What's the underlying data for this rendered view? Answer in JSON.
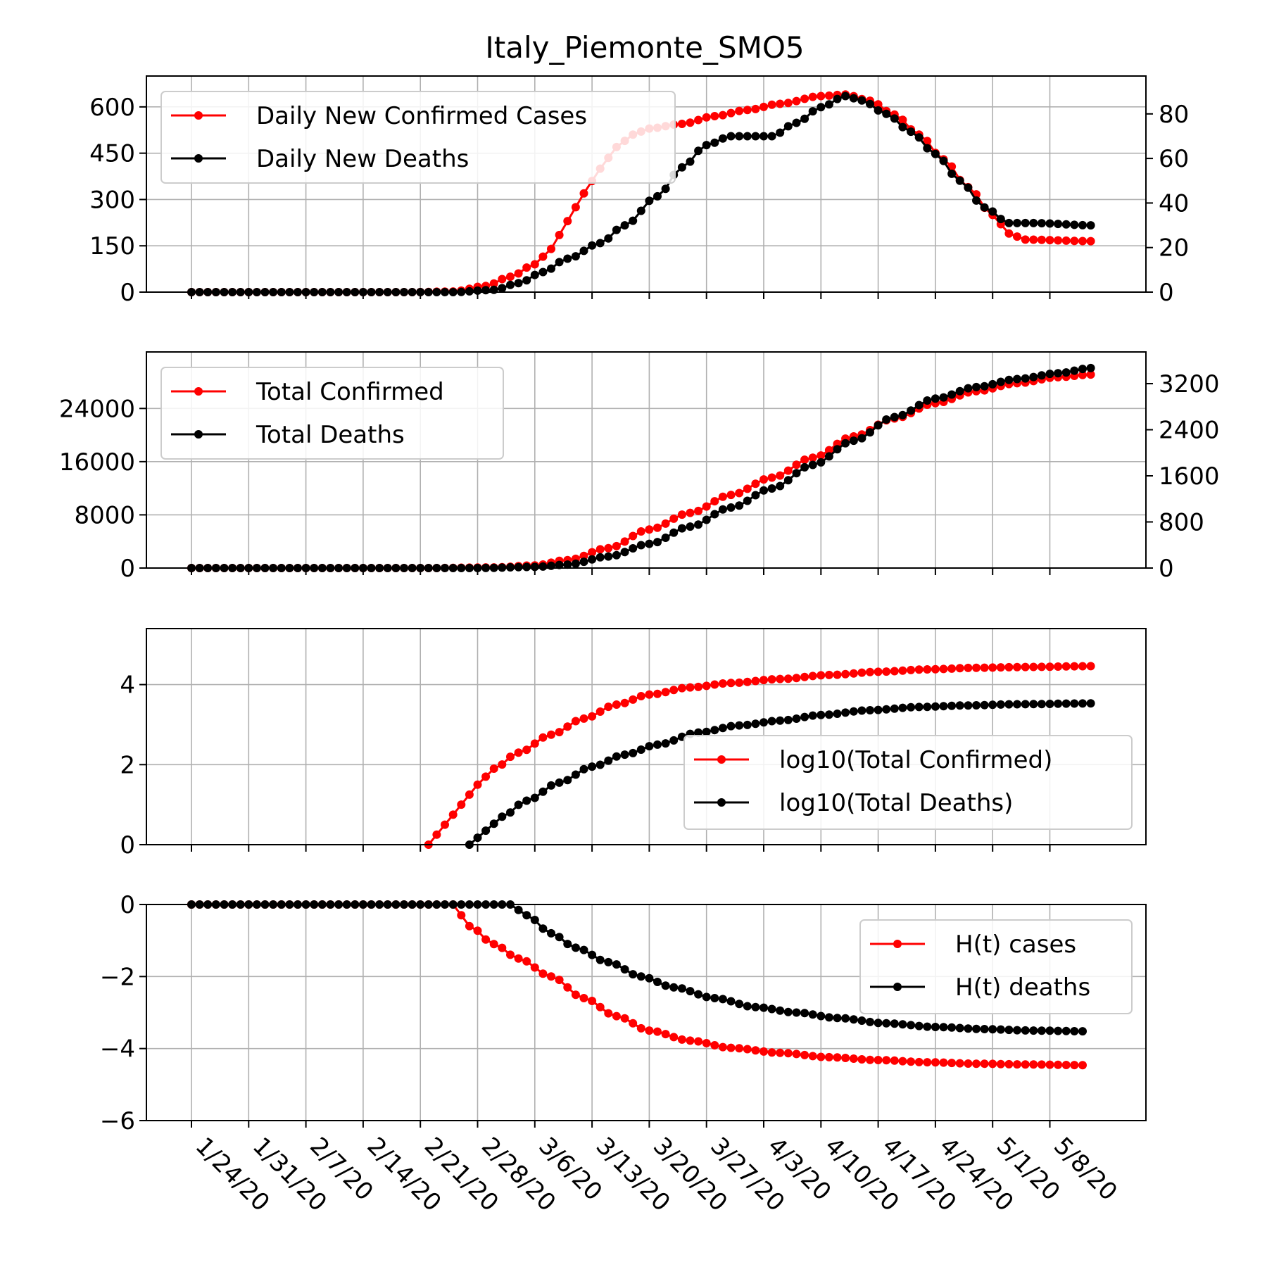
{
  "title": "Italy_Piemonte_SMO5",
  "colors": {
    "cases": "#ff0000",
    "deaths": "#000000",
    "grid": "#b0b0b0"
  },
  "x_tick_labels": [
    "1/24/20",
    "1/31/20",
    "2/7/20",
    "2/14/20",
    "2/21/20",
    "2/28/20",
    "3/6/20",
    "3/13/20",
    "3/20/20",
    "3/27/20",
    "4/3/20",
    "4/10/20",
    "4/17/20",
    "4/24/20",
    "5/1/20",
    "5/8/20"
  ],
  "chart_data": [
    {
      "type": "line",
      "x_type": "date",
      "x": {
        "start": "1/24/20",
        "end": "5/13/20"
      },
      "left_ylim": [
        0,
        700
      ],
      "left_ticks": [
        "0",
        "150",
        "300",
        "450",
        "600"
      ],
      "right_ylim": [
        0,
        97
      ],
      "right_ticks": [
        "0",
        "20",
        "40",
        "60",
        "80"
      ],
      "grid": true,
      "legend_position": "top-left",
      "series": [
        {
          "name": "Daily New Confirmed Cases",
          "axis": "left",
          "color": "#ff0000",
          "points": [
            [
              "1/24/20",
              0
            ],
            [
              "2/20/20",
              0
            ],
            [
              "2/25/20",
              2
            ],
            [
              "2/29/20",
              20
            ],
            [
              "3/3/20",
              50
            ],
            [
              "3/6/20",
              90
            ],
            [
              "3/8/20",
              140
            ],
            [
              "3/10/20",
              230
            ],
            [
              "3/12/20",
              320
            ],
            [
              "3/14/20",
              400
            ],
            [
              "3/16/20",
              470
            ],
            [
              "3/18/20",
              510
            ],
            [
              "3/20/20",
              530
            ],
            [
              "3/24/20",
              545
            ],
            [
              "3/28/20",
              570
            ],
            [
              "4/1/20",
              590
            ],
            [
              "4/5/20",
              610
            ],
            [
              "4/10/20",
              635
            ],
            [
              "4/13/20",
              640
            ],
            [
              "4/16/20",
              620
            ],
            [
              "4/19/20",
              575
            ],
            [
              "4/22/20",
              510
            ],
            [
              "4/25/20",
              430
            ],
            [
              "4/28/20",
              340
            ],
            [
              "5/1/20",
              250
            ],
            [
              "5/3/20",
              190
            ],
            [
              "5/5/20",
              170
            ],
            [
              "5/13/20",
              165
            ]
          ]
        },
        {
          "name": "Daily New Deaths",
          "axis": "right",
          "color": "#000000",
          "points": [
            [
              "1/24/20",
              0
            ],
            [
              "2/25/20",
              0
            ],
            [
              "3/1/20",
              1
            ],
            [
              "3/4/20",
              4
            ],
            [
              "3/7/20",
              9
            ],
            [
              "3/10/20",
              15
            ],
            [
              "3/14/20",
              22
            ],
            [
              "3/17/20",
              30
            ],
            [
              "3/21/20",
              43
            ],
            [
              "3/24/20",
              56
            ],
            [
              "3/27/20",
              66
            ],
            [
              "3/30/20",
              70
            ],
            [
              "4/1/20",
              70
            ],
            [
              "4/4/20",
              70
            ],
            [
              "4/7/20",
              76
            ],
            [
              "4/10/20",
              83
            ],
            [
              "4/13/20",
              88
            ],
            [
              "4/15/20",
              86
            ],
            [
              "4/18/20",
              80
            ],
            [
              "4/21/20",
              72
            ],
            [
              "4/24/20",
              62
            ],
            [
              "4/27/20",
              50
            ],
            [
              "4/30/20",
              38
            ],
            [
              "5/3/20",
              31
            ],
            [
              "5/6/20",
              31
            ],
            [
              "5/13/20",
              30
            ]
          ]
        }
      ]
    },
    {
      "type": "line",
      "x_type": "date",
      "x": {
        "start": "1/24/20",
        "end": "5/13/20"
      },
      "left_ylim": [
        0,
        32500
      ],
      "left_ticks": [
        "0",
        "8000",
        "16000",
        "24000"
      ],
      "right_ylim": [
        0,
        3750
      ],
      "right_ticks": [
        "0",
        "800",
        "1600",
        "2400",
        "3200"
      ],
      "grid": true,
      "legend_position": "top-left",
      "series": [
        {
          "name": "Total Confirmed",
          "axis": "left",
          "color": "#ff0000",
          "points": [
            [
              "1/24/20",
              0
            ],
            [
              "2/22/20",
              0
            ],
            [
              "3/1/20",
              100
            ],
            [
              "3/6/20",
              400
            ],
            [
              "3/10/20",
              1200
            ],
            [
              "3/15/20",
              3000
            ],
            [
              "3/20/20",
              5800
            ],
            [
              "3/25/20",
              8300
            ],
            [
              "3/30/20",
              11000
            ],
            [
              "4/4/20",
              13600
            ],
            [
              "4/9/20",
              16600
            ],
            [
              "4/14/20",
              19800
            ],
            [
              "4/19/20",
              22500
            ],
            [
              "4/24/20",
              24800
            ],
            [
              "4/29/20",
              26600
            ],
            [
              "5/4/20",
              27800
            ],
            [
              "5/9/20",
              28700
            ],
            [
              "5/13/20",
              29100
            ]
          ]
        },
        {
          "name": "Total Deaths",
          "axis": "right",
          "color": "#000000",
          "points": [
            [
              "1/24/20",
              0
            ],
            [
              "2/28/20",
              0
            ],
            [
              "3/6/20",
              20
            ],
            [
              "3/10/20",
              60
            ],
            [
              "3/15/20",
              200
            ],
            [
              "3/20/20",
              420
            ],
            [
              "3/25/20",
              720
            ],
            [
              "3/30/20",
              1050
            ],
            [
              "4/4/20",
              1380
            ],
            [
              "4/9/20",
              1790
            ],
            [
              "4/14/20",
              2210
            ],
            [
              "4/19/20",
              2620
            ],
            [
              "4/24/20",
              2940
            ],
            [
              "4/29/20",
              3140
            ],
            [
              "5/4/20",
              3280
            ],
            [
              "5/9/20",
              3380
            ],
            [
              "5/13/20",
              3470
            ]
          ]
        }
      ]
    },
    {
      "type": "line",
      "x_type": "date",
      "x": {
        "start": "1/24/20",
        "end": "5/13/20"
      },
      "left_ylim": [
        0,
        5.4
      ],
      "left_ticks": [
        "0",
        "2",
        "4"
      ],
      "grid": true,
      "legend_position": "center-right",
      "series": [
        {
          "name": "log10(Total Confirmed)",
          "axis": "left",
          "color": "#ff0000",
          "points": [
            [
              "2/22/20",
              0
            ],
            [
              "2/24/20",
              0.5
            ],
            [
              "2/26/20",
              1.0
            ],
            [
              "2/28/20",
              1.5
            ],
            [
              "3/1/20",
              1.9
            ],
            [
              "3/4/20",
              2.3
            ],
            [
              "3/8/20",
              2.75
            ],
            [
              "3/12/20",
              3.15
            ],
            [
              "3/16/20",
              3.5
            ],
            [
              "3/20/20",
              3.75
            ],
            [
              "3/25/20",
              3.93
            ],
            [
              "3/30/20",
              4.04
            ],
            [
              "4/5/20",
              4.14
            ],
            [
              "4/11/20",
              4.24
            ],
            [
              "4/17/20",
              4.32
            ],
            [
              "4/23/20",
              4.38
            ],
            [
              "4/29/20",
              4.42
            ],
            [
              "5/5/20",
              4.44
            ],
            [
              "5/13/20",
              4.46
            ]
          ]
        },
        {
          "name": "log10(Total Deaths)",
          "axis": "left",
          "color": "#000000",
          "points": [
            [
              "2/27/20",
              0
            ],
            [
              "2/29/20",
              0.35
            ],
            [
              "3/2/20",
              0.7
            ],
            [
              "3/5/20",
              1.1
            ],
            [
              "3/9/20",
              1.55
            ],
            [
              "3/13/20",
              1.95
            ],
            [
              "3/17/20",
              2.25
            ],
            [
              "3/21/20",
              2.5
            ],
            [
              "3/26/20",
              2.8
            ],
            [
              "3/31/20",
              2.98
            ],
            [
              "4/5/20",
              3.1
            ],
            [
              "4/10/20",
              3.24
            ],
            [
              "4/16/20",
              3.36
            ],
            [
              "4/22/20",
              3.44
            ],
            [
              "4/28/20",
              3.48
            ],
            [
              "5/4/20",
              3.51
            ],
            [
              "5/13/20",
              3.53
            ]
          ]
        }
      ]
    },
    {
      "type": "line",
      "x_type": "date",
      "x": {
        "start": "1/24/20",
        "end": "5/13/20"
      },
      "left_ylim": [
        -6,
        0
      ],
      "left_ticks": [
        "0",
        "−2",
        "−4",
        "−6"
      ],
      "grid": true,
      "legend_position": "upper-right",
      "series": [
        {
          "name": "H(t) cases",
          "axis": "left",
          "color": "#ff0000",
          "points": [
            [
              "1/24/20",
              0
            ],
            [
              "2/25/20",
              0
            ],
            [
              "2/27/20",
              -0.6
            ],
            [
              "3/1/20",
              -1.1
            ],
            [
              "3/4/20",
              -1.5
            ],
            [
              "3/8/20",
              -2.0
            ],
            [
              "3/12/20",
              -2.6
            ],
            [
              "3/16/20",
              -3.1
            ],
            [
              "3/20/20",
              -3.5
            ],
            [
              "3/25/20",
              -3.78
            ],
            [
              "3/30/20",
              -3.98
            ],
            [
              "4/5/20",
              -4.12
            ],
            [
              "4/11/20",
              -4.24
            ],
            [
              "4/17/20",
              -4.32
            ],
            [
              "4/23/20",
              -4.38
            ],
            [
              "4/29/20",
              -4.42
            ],
            [
              "5/5/20",
              -4.44
            ],
            [
              "5/12/20",
              -4.46
            ]
          ]
        },
        {
          "name": "H(t) deaths",
          "axis": "left",
          "color": "#000000",
          "points": [
            [
              "1/24/20",
              0
            ],
            [
              "3/3/20",
              0
            ],
            [
              "3/5/20",
              -0.3
            ],
            [
              "3/8/20",
              -0.8
            ],
            [
              "3/11/20",
              -1.2
            ],
            [
              "3/15/20",
              -1.6
            ],
            [
              "3/19/20",
              -2.0
            ],
            [
              "3/23/20",
              -2.3
            ],
            [
              "3/28/20",
              -2.6
            ],
            [
              "4/2/20",
              -2.85
            ],
            [
              "4/7/20",
              -3.0
            ],
            [
              "4/12/20",
              -3.15
            ],
            [
              "4/18/20",
              -3.3
            ],
            [
              "4/24/20",
              -3.4
            ],
            [
              "4/30/20",
              -3.46
            ],
            [
              "5/6/20",
              -3.5
            ],
            [
              "5/12/20",
              -3.52
            ]
          ]
        }
      ]
    }
  ]
}
